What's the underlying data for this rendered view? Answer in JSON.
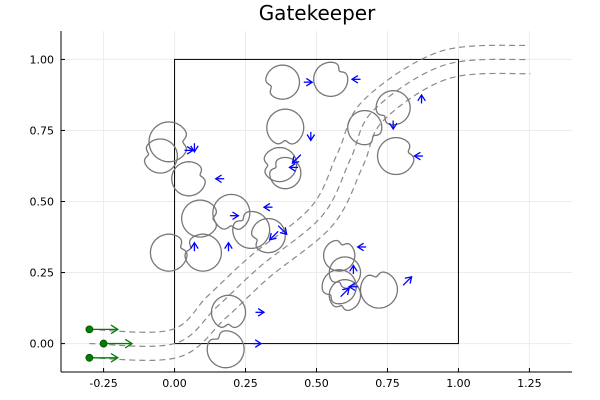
{
  "chart_data": {
    "type": "scatter",
    "title": "Gatekeeper",
    "xlabel": "",
    "ylabel": "",
    "xlim": [
      -0.4,
      1.4
    ],
    "ylim": [
      -0.1,
      1.1
    ],
    "grid": true,
    "xticks": [
      -0.25,
      0.0,
      0.25,
      0.5,
      0.75,
      1.0,
      1.25
    ],
    "yticks": [
      0.0,
      0.25,
      0.5,
      0.75,
      1.0
    ],
    "xtick_labels": [
      "-0.25",
      "0.00",
      "0.25",
      "0.50",
      "0.75",
      "1.00",
      "1.25"
    ],
    "ytick_labels": [
      "0.00",
      "0.25",
      "0.50",
      "0.75",
      "1.00"
    ],
    "workspace_box": {
      "x": [
        0.0,
        1.0
      ],
      "y": [
        0.0,
        1.0
      ]
    },
    "corridor": {
      "center": [
        [
          -0.3,
          0.0
        ],
        [
          0.0,
          0.0
        ],
        [
          0.15,
          0.13
        ],
        [
          0.3,
          0.27
        ],
        [
          0.52,
          0.45
        ],
        [
          0.62,
          0.65
        ],
        [
          0.7,
          0.82
        ],
        [
          0.95,
          0.98
        ],
        [
          1.25,
          1.0
        ]
      ],
      "offset": 0.05
    },
    "agents": [
      {
        "x": -0.3,
        "y": 0.05,
        "dir": [
          0.1,
          0.0
        ]
      },
      {
        "x": -0.25,
        "y": 0.0,
        "dir": [
          0.1,
          0.0
        ]
      },
      {
        "x": -0.3,
        "y": -0.05,
        "dir": [
          0.1,
          0.0
        ]
      }
    ],
    "obstacles": [
      {
        "x": 0.55,
        "y": 0.93,
        "r": 0.06,
        "notch": 0.75
      },
      {
        "x": 0.38,
        "y": 0.92,
        "r": 0.06,
        "notch": 3.5
      },
      {
        "x": 0.77,
        "y": 0.83,
        "r": 0.06,
        "notch": 3.9
      },
      {
        "x": 0.67,
        "y": 0.76,
        "r": 0.06,
        "notch": 5.5
      },
      {
        "x": 0.39,
        "y": 0.76,
        "r": 0.065,
        "notch": 4.7
      },
      {
        "x": 0.78,
        "y": 0.66,
        "r": 0.065,
        "notch": 0.3
      },
      {
        "x": 0.37,
        "y": 0.63,
        "r": 0.06,
        "notch": 3.2
      },
      {
        "x": 0.39,
        "y": 0.6,
        "r": 0.055,
        "notch": 2.6
      },
      {
        "x": -0.02,
        "y": 0.71,
        "r": 0.07,
        "notch": 0.0
      },
      {
        "x": -0.05,
        "y": 0.66,
        "r": 0.06,
        "notch": 3.0
      },
      {
        "x": 0.05,
        "y": 0.58,
        "r": 0.06,
        "notch": 0.3
      },
      {
        "x": 0.2,
        "y": 0.46,
        "r": 0.065,
        "notch": 4.7
      },
      {
        "x": 0.09,
        "y": 0.44,
        "r": 0.065,
        "notch": 0.0
      },
      {
        "x": 0.27,
        "y": 0.4,
        "r": 0.065,
        "notch": 2.3
      },
      {
        "x": 0.33,
        "y": 0.38,
        "r": 0.06,
        "notch": 3.5
      },
      {
        "x": -0.02,
        "y": 0.32,
        "r": 0.065,
        "notch": 0.4
      },
      {
        "x": 0.1,
        "y": 0.32,
        "r": 0.065,
        "notch": 2.8
      },
      {
        "x": 0.58,
        "y": 0.31,
        "r": 0.055,
        "notch": 1.3
      },
      {
        "x": 0.6,
        "y": 0.25,
        "r": 0.055,
        "notch": 4.2
      },
      {
        "x": 0.58,
        "y": 0.2,
        "r": 0.06,
        "notch": 3.9
      },
      {
        "x": 0.6,
        "y": 0.17,
        "r": 0.055,
        "notch": 4.4
      },
      {
        "x": 0.72,
        "y": 0.19,
        "r": 0.065,
        "notch": 1.8
      },
      {
        "x": 0.19,
        "y": 0.11,
        "r": 0.06,
        "notch": 4.7
      },
      {
        "x": 0.18,
        "y": -0.02,
        "r": 0.065,
        "notch": 2.2
      }
    ],
    "obstacle_velocities": [
      {
        "x": 0.64,
        "y": 0.93,
        "dx": -0.03,
        "dy": 0.0
      },
      {
        "x": 0.47,
        "y": 0.92,
        "dx": 0.03,
        "dy": 0.0
      },
      {
        "x": 0.87,
        "y": 0.86,
        "dx": 0.0,
        "dy": 0.03
      },
      {
        "x": 0.77,
        "y": 0.77,
        "dx": 0.0,
        "dy": -0.03
      },
      {
        "x": 0.48,
        "y": 0.73,
        "dx": 0.0,
        "dy": -0.03
      },
      {
        "x": 0.86,
        "y": 0.66,
        "dx": -0.03,
        "dy": 0.0
      },
      {
        "x": 0.43,
        "y": 0.65,
        "dx": -0.03,
        "dy": -0.03
      },
      {
        "x": 0.42,
        "y": 0.62,
        "dx": -0.03,
        "dy": 0.0
      },
      {
        "x": 0.05,
        "y": 0.68,
        "dx": 0.0,
        "dy": 0.0
      },
      {
        "x": 0.07,
        "y": 0.69,
        "dx": 0.0,
        "dy": -0.03
      },
      {
        "x": 0.16,
        "y": 0.58,
        "dx": -0.03,
        "dy": 0.0
      },
      {
        "x": 0.33,
        "y": 0.48,
        "dx": -0.03,
        "dy": 0.0
      },
      {
        "x": 0.21,
        "y": 0.45,
        "dx": 0.03,
        "dy": 0.0
      },
      {
        "x": 0.38,
        "y": 0.4,
        "dx": 0.03,
        "dy": -0.03
      },
      {
        "x": 0.35,
        "y": 0.38,
        "dx": -0.03,
        "dy": -0.03
      },
      {
        "x": 0.07,
        "y": 0.34,
        "dx": 0.0,
        "dy": 0.03
      },
      {
        "x": 0.19,
        "y": 0.34,
        "dx": 0.0,
        "dy": 0.03
      },
      {
        "x": 0.66,
        "y": 0.34,
        "dx": -0.03,
        "dy": 0.0
      },
      {
        "x": 0.63,
        "y": 0.26,
        "dx": 0.0,
        "dy": 0.03
      },
      {
        "x": 0.63,
        "y": 0.2,
        "dx": -0.03,
        "dy": 0.0
      },
      {
        "x": 0.6,
        "y": 0.18,
        "dx": 0.03,
        "dy": 0.03
      },
      {
        "x": 0.82,
        "y": 0.22,
        "dx": 0.03,
        "dy": 0.03
      },
      {
        "x": 0.3,
        "y": 0.11,
        "dx": 0.03,
        "dy": 0.0
      },
      {
        "x": 0.29,
        "y": 0.0,
        "dx": 0.03,
        "dy": 0.0
      }
    ],
    "colors": {
      "obstacle": "#777777",
      "corridor": "#8a8a8a",
      "velocity": "#0000ff",
      "agent": "#008000",
      "grid": "#ececec",
      "frame": "#000000"
    }
  }
}
